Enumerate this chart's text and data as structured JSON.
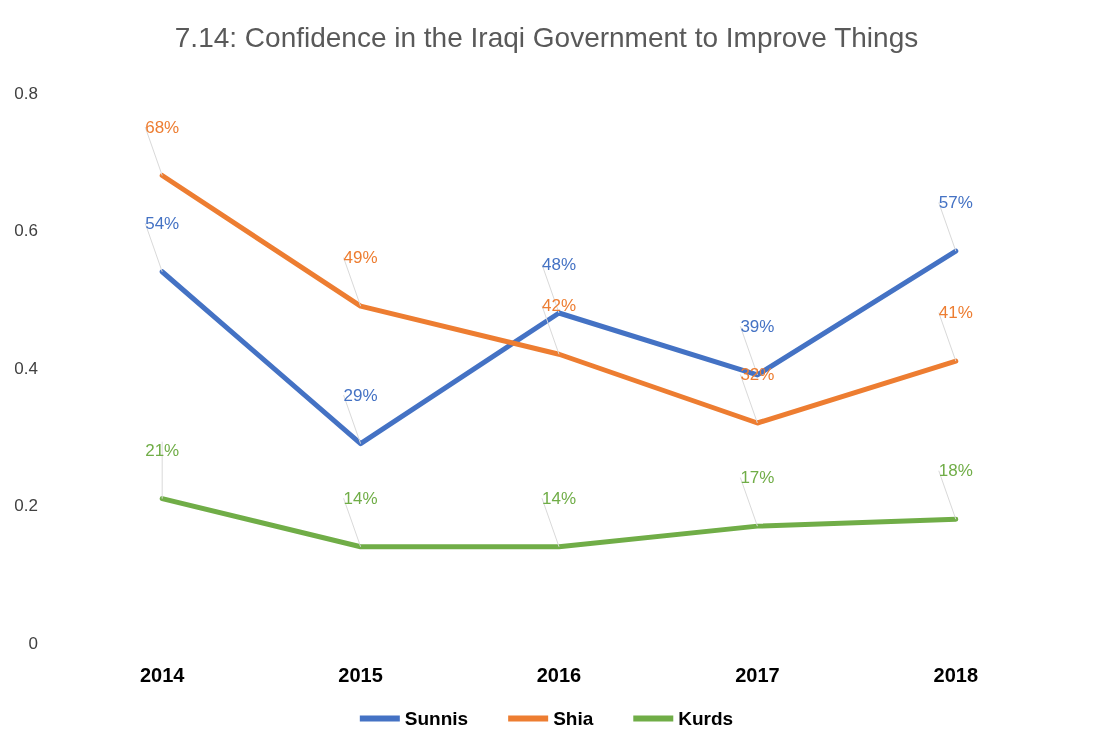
{
  "chart_data": {
    "type": "line",
    "title": "7.14: Confidence in the Iraqi Government to Improve Things",
    "categories": [
      "2014",
      "2015",
      "2016",
      "2017",
      "2018"
    ],
    "series": [
      {
        "name": "Sunnis",
        "color": "#4472c4",
        "values": [
          0.54,
          0.29,
          0.48,
          0.39,
          0.57
        ],
        "value_labels": [
          "54%",
          "29%",
          "48%",
          "39%",
          "57%"
        ]
      },
      {
        "name": "Shia",
        "color": "#ed7d31",
        "values": [
          0.68,
          0.49,
          0.42,
          0.32,
          0.41
        ],
        "value_labels": [
          "68%",
          "49%",
          "42%",
          "32%",
          "41%"
        ]
      },
      {
        "name": "Kurds",
        "color": "#70ad47",
        "values": [
          0.21,
          0.14,
          0.14,
          0.17,
          0.18
        ],
        "value_labels": [
          "21%",
          "14%",
          "14%",
          "17%",
          "18%"
        ]
      }
    ],
    "ylim": [
      0,
      0.8
    ],
    "yticks": [
      0,
      0.2,
      0.4,
      0.6,
      0.8
    ],
    "grid": false,
    "legend": "bottom",
    "marker": "none",
    "line_style": "solid"
  }
}
